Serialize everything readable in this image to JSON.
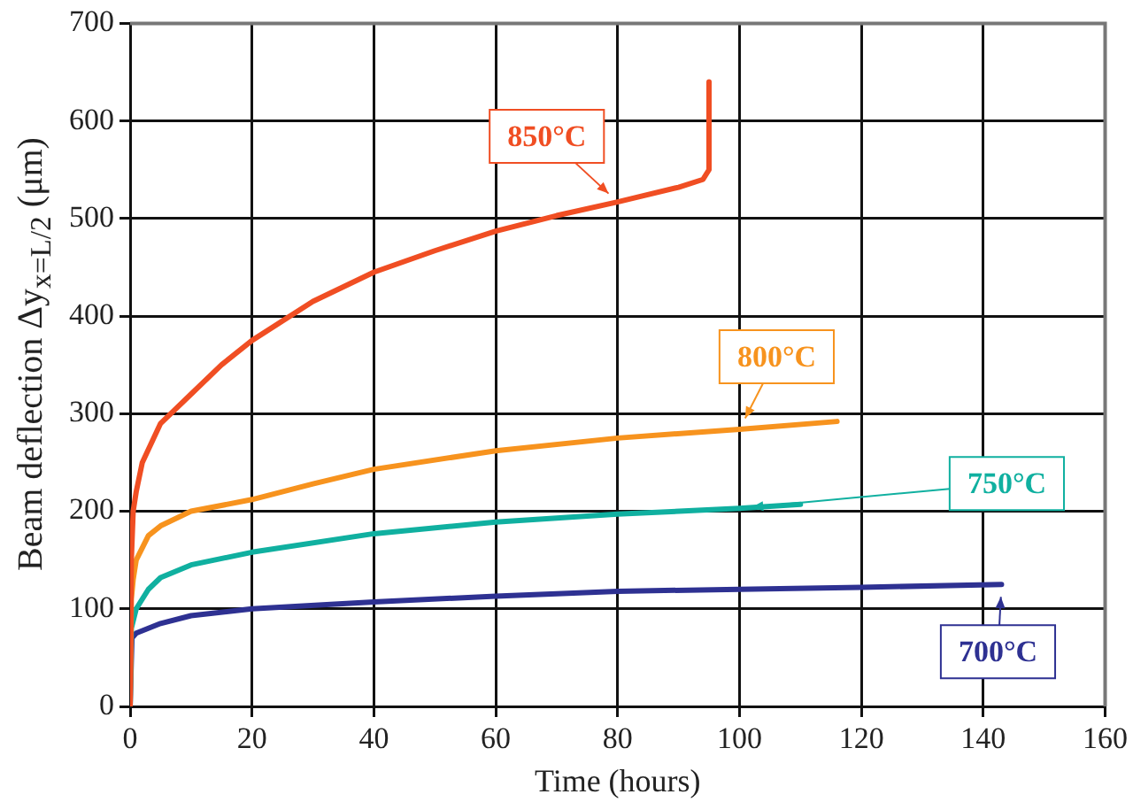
{
  "chart_data": {
    "type": "line",
    "xlabel": "Time (hours)",
    "ylabel": "Beam deflection  Δy$_{x=L/2}$ (μm)",
    "xlim": [
      0,
      160
    ],
    "xticks": [
      0,
      20,
      40,
      60,
      80,
      100,
      120,
      140,
      160
    ],
    "ylim": [
      0,
      700
    ],
    "yticks": [
      0,
      100,
      200,
      300,
      400,
      500,
      600,
      700
    ],
    "grid": true,
    "marker": "none",
    "line_style": "solid",
    "series": [
      {
        "name": "850°C",
        "color": "#f04e23",
        "x": [
          0,
          0.2,
          0.5,
          1,
          2,
          5,
          10,
          15,
          20,
          30,
          40,
          50,
          60,
          70,
          80,
          90,
          94,
          95,
          95
        ],
        "values": [
          0,
          150,
          200,
          220,
          250,
          290,
          320,
          350,
          375,
          415,
          445,
          467,
          487,
          503,
          517,
          532,
          540,
          550,
          640
        ]
      },
      {
        "name": "800°C",
        "color": "#f7931e",
        "x": [
          0,
          0.2,
          0.5,
          1,
          3,
          5,
          10,
          20,
          30,
          40,
          60,
          80,
          100,
          116
        ],
        "values": [
          0,
          110,
          130,
          150,
          175,
          185,
          200,
          212,
          228,
          243,
          262,
          275,
          284,
          292
        ]
      },
      {
        "name": "750°C",
        "color": "#10b0a0",
        "x": [
          0,
          0.2,
          1,
          3,
          5,
          10,
          20,
          40,
          60,
          80,
          100,
          110
        ],
        "values": [
          0,
          80,
          100,
          120,
          132,
          145,
          158,
          177,
          189,
          197,
          203,
          207
        ]
      },
      {
        "name": "700°C",
        "color": "#2e3192",
        "x": [
          0,
          0.3,
          1,
          5,
          10,
          20,
          40,
          60,
          80,
          100,
          120,
          143
        ],
        "values": [
          0,
          70,
          75,
          85,
          93,
          100,
          107,
          113,
          118,
          120,
          122,
          125
        ]
      }
    ]
  }
}
